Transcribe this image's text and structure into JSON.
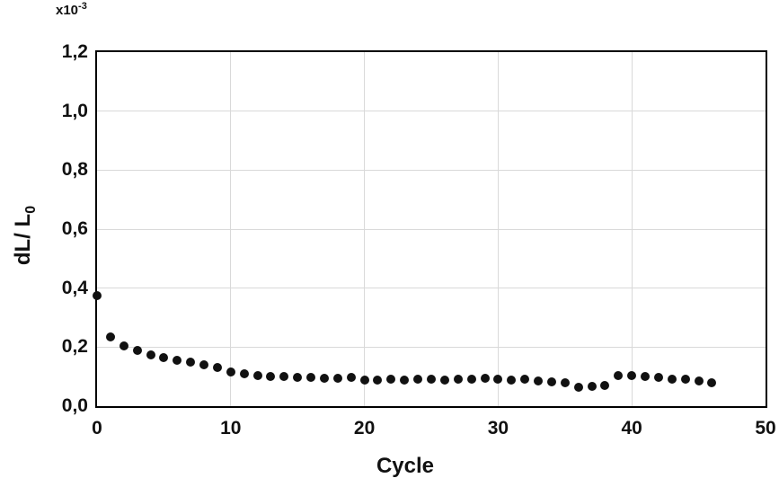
{
  "figure": {
    "y_multiplier": {
      "base": "x10",
      "exp": "-3"
    },
    "y_axis_title": {
      "text": "dL/ L",
      "sub": "0"
    },
    "x_axis_title": "Cycle"
  },
  "axes": {
    "y_ticks": [
      {
        "label": "1,2",
        "value": 1.2
      },
      {
        "label": "1,0",
        "value": 1.0
      },
      {
        "label": "0,8",
        "value": 0.8
      },
      {
        "label": "0,6",
        "value": 0.6
      },
      {
        "label": "0,4",
        "value": 0.4
      },
      {
        "label": "0,2",
        "value": 0.2
      },
      {
        "label": "0,0",
        "value": 0.0
      }
    ],
    "x_ticks": [
      {
        "label": "0",
        "value": 0
      },
      {
        "label": "10",
        "value": 10
      },
      {
        "label": "20",
        "value": 20
      },
      {
        "label": "30",
        "value": 30
      },
      {
        "label": "40",
        "value": 40
      },
      {
        "label": "50",
        "value": 50
      }
    ]
  },
  "chart_data": {
    "type": "scatter",
    "title": "",
    "xlabel": "Cycle",
    "ylabel": "dL/ L0 (x10^-3)",
    "xlim": [
      0,
      50
    ],
    "ylim": [
      0.0,
      1.2
    ],
    "grid": true,
    "legend": "none",
    "marker": "filled-circle",
    "x": [
      0,
      1,
      2,
      3,
      4,
      5,
      6,
      7,
      8,
      9,
      10,
      11,
      12,
      13,
      14,
      15,
      16,
      17,
      18,
      19,
      20,
      21,
      22,
      23,
      24,
      25,
      26,
      27,
      28,
      29,
      30,
      31,
      32,
      33,
      34,
      35,
      36,
      37,
      38,
      39,
      40,
      41,
      42,
      43,
      44,
      45,
      46
    ],
    "y": [
      0.375,
      0.235,
      0.205,
      0.19,
      0.175,
      0.165,
      0.155,
      0.148,
      0.14,
      0.13,
      0.115,
      0.11,
      0.105,
      0.102,
      0.1,
      0.098,
      0.096,
      0.095,
      0.095,
      0.097,
      0.088,
      0.088,
      0.09,
      0.089,
      0.09,
      0.09,
      0.088,
      0.09,
      0.09,
      0.094,
      0.09,
      0.088,
      0.09,
      0.086,
      0.083,
      0.079,
      0.065,
      0.066,
      0.07,
      0.105,
      0.104,
      0.1,
      0.097,
      0.09,
      0.09,
      0.085,
      0.08
    ]
  },
  "colors": {
    "background": "#ffffff",
    "axis": "#000000",
    "grid": "#d9d9d9",
    "marker": "#111111",
    "text": "#111111"
  }
}
